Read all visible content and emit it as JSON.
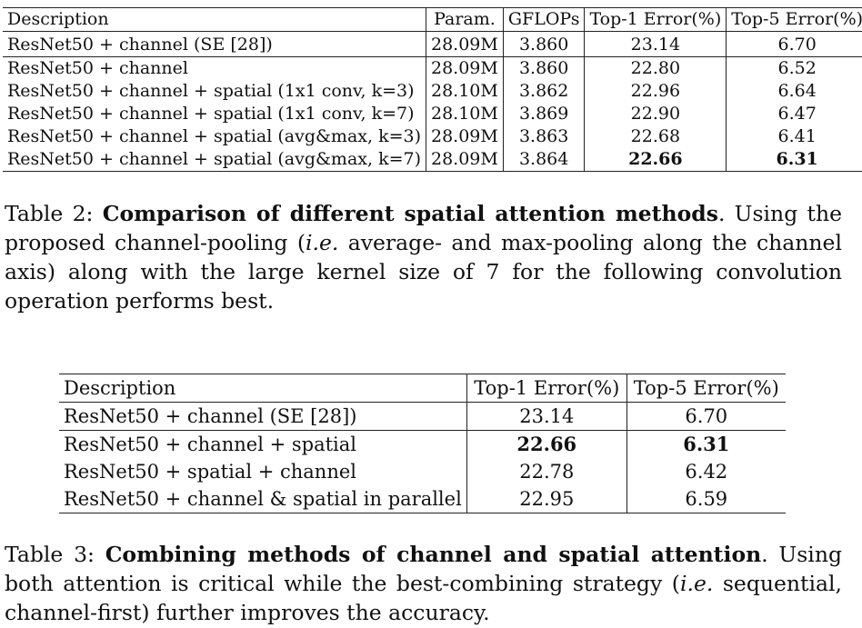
{
  "table2": {
    "headers": [
      "Description",
      "Param.",
      "GFLOPs",
      "Top-1 Error(%)",
      "Top-5 Error(%)"
    ],
    "rows": [
      [
        "ResNet50 + channel (SE [28])",
        "28.09M",
        "3.860",
        "23.14",
        "6.70"
      ],
      [
        "ResNet50 + channel",
        "28.09M",
        "3.860",
        "22.80",
        "6.52"
      ],
      [
        "ResNet50 + channel + spatial (1x1 conv, k=3)",
        "28.10M",
        "3.862",
        "22.96",
        "6.64"
      ],
      [
        "ResNet50 + channel + spatial (1x1 conv, k=7)",
        "28.10M",
        "3.869",
        "22.90",
        "6.47"
      ],
      [
        "ResNet50 + channel + spatial (avg&max, k=3)",
        "28.09M",
        "3.863",
        "22.68",
        "6.41"
      ],
      [
        "ResNet50 + channel + spatial (avg&max, k=7)",
        "28.09M",
        "3.864",
        "22.66",
        "6.31"
      ]
    ]
  },
  "caption2": {
    "label": "Table 2:",
    "title": "Comparison of different spatial attention methods",
    "text_a": ". Using the proposed channel-pooling (",
    "ie": "i.e.",
    "text_b": " average- and max-pooling along the channel axis) along with the large kernel size of 7 for the following convolution operation performs best."
  },
  "table3": {
    "headers": [
      "Description",
      "Top-1 Error(%)",
      "Top-5 Error(%)"
    ],
    "rows": [
      [
        "ResNet50 + channel (SE [28])",
        "23.14",
        "6.70"
      ],
      [
        "ResNet50 + channel + spatial",
        "22.66",
        "6.31"
      ],
      [
        "ResNet50 + spatial + channel",
        "22.78",
        "6.42"
      ],
      [
        "ResNet50 + channel & spatial in parallel",
        "22.95",
        "6.59"
      ]
    ]
  },
  "caption3": {
    "label": "Table 3:",
    "title": "Combining methods of channel and spatial attention",
    "text_a": ". Using both attention is critical while the best-combining strategy (",
    "ie": "i.e.",
    "text_b": " sequential, channel-first) further improves the accuracy."
  }
}
